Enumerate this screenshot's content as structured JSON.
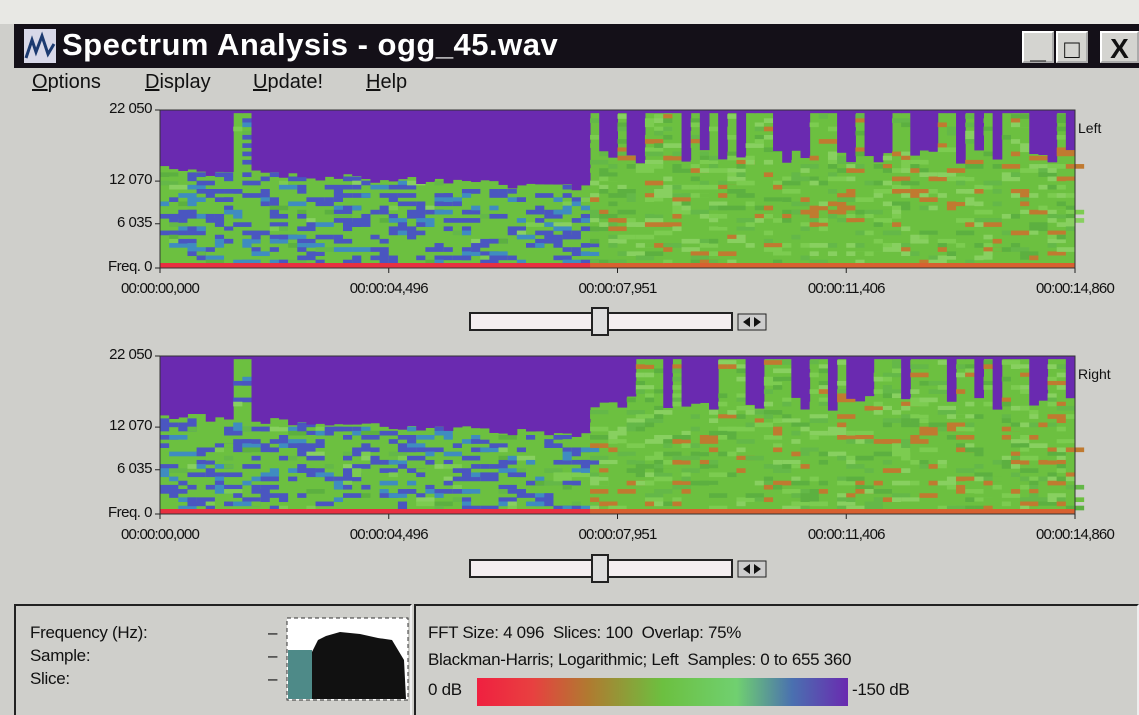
{
  "window": {
    "title": "Spectrum Analysis - ogg_45.wav",
    "controls": [
      "_",
      "□",
      "X"
    ]
  },
  "menu": [
    "Options",
    "Display",
    "Update!",
    "Help"
  ],
  "panels": [
    {
      "channel": "Left",
      "freq_labels": [
        "22 050",
        "12 070",
        "6 035",
        "Freq. 0"
      ],
      "time_labels": [
        "00:00:00,000",
        "00:00:04,496",
        "00:00:07,951",
        "00:00:11,406",
        "00:00:14,860"
      ]
    },
    {
      "channel": "Right",
      "freq_labels": [
        "22 050",
        "12 070",
        "6 035",
        "Freq. 0"
      ],
      "time_labels": [
        "00:00:00,000",
        "00:00:04,496",
        "00:00:07,951",
        "00:00:11,406",
        "00:00:14,860"
      ]
    }
  ],
  "info": {
    "labels": [
      "Frequency (Hz):",
      "Sample:",
      "Slice:"
    ],
    "values": [
      "–",
      "–",
      "–"
    ]
  },
  "status": {
    "fft_line": "FFT Size: 4 096  Slices: 100  Overlap: 75%",
    "window_line": "Blackman-Harris; Logarithmic; Left  Samples: 0 to 655 360",
    "scale_start": "0 dB",
    "scale_end": "-150 dB"
  }
}
